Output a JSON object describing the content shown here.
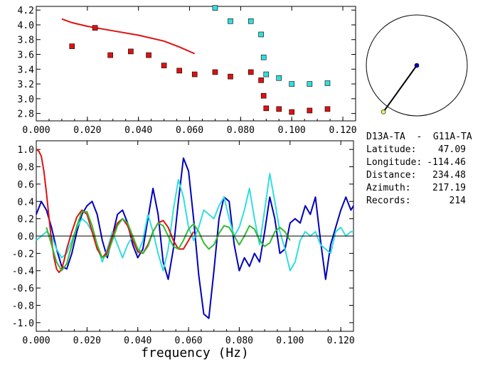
{
  "colors": {
    "red": "#dd1111",
    "cyan": "#33dddd",
    "blue": "#0000bb",
    "green": "#33bb33",
    "black": "#000000"
  },
  "info": {
    "station_pair": "D13A-TA  -  G11A-TA",
    "rows": [
      {
        "label": "Latitude:",
        "value": "47.09"
      },
      {
        "label": "Longitude:",
        "value": "-114.46"
      },
      {
        "label": "Distance:",
        "value": "234.48"
      },
      {
        "label": "Azimuth:",
        "value": "217.19"
      },
      {
        "label": "Records:",
        "value": "214"
      }
    ]
  },
  "chart_data": [
    {
      "type": "scatter",
      "xlim": [
        0.0,
        0.125
      ],
      "ylim": [
        2.7,
        4.25
      ],
      "x_ticks": [
        "0.000",
        "0.020",
        "0.040",
        "0.060",
        "0.080",
        "0.100",
        "0.120"
      ],
      "y_ticks": [
        "2.8",
        "3.0",
        "3.2",
        "3.4",
        "3.6",
        "3.8",
        "4.0",
        "4.2"
      ],
      "series": [
        {
          "color": "red",
          "style": "line",
          "x": [
            0.01,
            0.014,
            0.02,
            0.03,
            0.04,
            0.05,
            0.056,
            0.062
          ],
          "y": [
            4.08,
            4.03,
            3.98,
            3.92,
            3.86,
            3.78,
            3.7,
            3.61
          ]
        },
        {
          "color": "red",
          "style": "markers",
          "x": [
            0.014,
            0.023,
            0.029,
            0.037,
            0.044,
            0.05,
            0.056,
            0.062,
            0.07,
            0.076,
            0.084,
            0.088,
            0.089,
            0.09,
            0.095,
            0.1,
            0.107,
            0.114
          ],
          "y": [
            3.71,
            3.96,
            3.59,
            3.64,
            3.59,
            3.45,
            3.38,
            3.33,
            3.36,
            3.3,
            3.36,
            3.25,
            3.04,
            2.87,
            2.86,
            2.82,
            2.84,
            2.86
          ]
        },
        {
          "color": "cyan",
          "style": "markers",
          "x": [
            0.07,
            0.076,
            0.084,
            0.088,
            0.089,
            0.09,
            0.095,
            0.1,
            0.107,
            0.114
          ],
          "y": [
            4.23,
            4.05,
            4.05,
            3.87,
            3.56,
            3.33,
            3.28,
            3.2,
            3.2,
            3.21
          ]
        }
      ]
    },
    {
      "type": "line",
      "xlim": [
        0.0,
        0.125
      ],
      "ylim": [
        -1.1,
        1.1
      ],
      "x_ticks": [
        "0.000",
        "0.020",
        "0.040",
        "0.060",
        "0.080",
        "0.100",
        "0.120"
      ],
      "y_ticks": [
        "1.0",
        "0.8",
        "0.6",
        "0.4",
        "0.2",
        "0.0",
        "-0.2",
        "-0.4",
        "-0.6",
        "-0.8",
        "-1.0"
      ],
      "xlabel": "frequency (Hz)",
      "series": [
        {
          "color": "blue",
          "x": [
            0.0,
            0.002,
            0.004,
            0.006,
            0.008,
            0.01,
            0.012,
            0.014,
            0.016,
            0.018,
            0.02,
            0.022,
            0.024,
            0.026,
            0.028,
            0.03,
            0.032,
            0.034,
            0.036,
            0.038,
            0.04,
            0.042,
            0.044,
            0.046,
            0.048,
            0.05,
            0.052,
            0.054,
            0.056,
            0.058,
            0.06,
            0.062,
            0.064,
            0.066,
            0.068,
            0.07,
            0.072,
            0.074,
            0.076,
            0.078,
            0.08,
            0.082,
            0.084,
            0.086,
            0.088,
            0.09,
            0.092,
            0.094,
            0.096,
            0.098,
            0.1,
            0.102,
            0.104,
            0.106,
            0.108,
            0.11,
            0.112,
            0.114,
            0.116,
            0.118,
            0.12,
            0.122,
            0.124,
            0.125
          ],
          "y": [
            0.25,
            0.4,
            0.3,
            0.1,
            -0.15,
            -0.35,
            -0.38,
            -0.2,
            0.05,
            0.25,
            0.35,
            0.4,
            0.25,
            -0.05,
            -0.25,
            0.0,
            0.25,
            0.3,
            0.15,
            -0.1,
            -0.25,
            -0.15,
            0.2,
            0.55,
            0.25,
            -0.3,
            -0.5,
            -0.15,
            0.4,
            0.9,
            0.75,
            0.2,
            -0.45,
            -0.9,
            -0.95,
            -0.4,
            0.2,
            0.45,
            0.4,
            -0.1,
            -0.4,
            -0.25,
            -0.35,
            -0.2,
            -0.3,
            0.05,
            0.45,
            0.2,
            -0.2,
            -0.15,
            0.15,
            0.2,
            0.15,
            0.35,
            0.25,
            0.45,
            -0.05,
            -0.5,
            -0.1,
            0.1,
            0.3,
            0.45,
            0.3,
            0.35
          ]
        },
        {
          "color": "cyan",
          "x": [
            0.0,
            0.002,
            0.004,
            0.006,
            0.008,
            0.01,
            0.012,
            0.014,
            0.016,
            0.018,
            0.02,
            0.022,
            0.024,
            0.026,
            0.028,
            0.03,
            0.032,
            0.034,
            0.036,
            0.038,
            0.04,
            0.042,
            0.044,
            0.046,
            0.048,
            0.05,
            0.052,
            0.054,
            0.056,
            0.058,
            0.06,
            0.062,
            0.064,
            0.066,
            0.068,
            0.07,
            0.072,
            0.074,
            0.076,
            0.078,
            0.08,
            0.082,
            0.084,
            0.086,
            0.088,
            0.09,
            0.092,
            0.094,
            0.096,
            0.098,
            0.1,
            0.102,
            0.104,
            0.106,
            0.108,
            0.11,
            0.112,
            0.114,
            0.116,
            0.118,
            0.12,
            0.122,
            0.124,
            0.125
          ],
          "y": [
            -0.05,
            0.0,
            0.05,
            0.0,
            -0.15,
            -0.25,
            -0.2,
            -0.05,
            0.1,
            0.2,
            0.15,
            0.05,
            -0.1,
            -0.3,
            -0.15,
            0.05,
            -0.1,
            -0.25,
            -0.1,
            0.0,
            -0.2,
            -0.05,
            0.25,
            0.05,
            -0.2,
            -0.4,
            -0.15,
            0.3,
            0.65,
            0.45,
            0.1,
            -0.05,
            0.1,
            0.3,
            0.25,
            0.2,
            0.35,
            0.45,
            0.2,
            0.0,
            0.1,
            0.3,
            0.55,
            0.2,
            -0.1,
            0.3,
            0.72,
            0.4,
            0.05,
            -0.15,
            -0.4,
            -0.3,
            -0.05,
            0.05,
            0.0,
            0.05,
            -0.1,
            -0.15,
            -0.2,
            0.05,
            0.1,
            0.0,
            0.05,
            0.05
          ]
        },
        {
          "color": "red",
          "x": [
            0.0,
            0.001,
            0.002,
            0.003,
            0.004,
            0.005,
            0.006,
            0.007,
            0.008,
            0.009,
            0.01,
            0.011,
            0.012,
            0.014,
            0.016,
            0.018,
            0.02,
            0.022,
            0.024,
            0.026,
            0.028,
            0.03,
            0.032,
            0.034,
            0.036,
            0.038,
            0.04,
            0.042,
            0.044,
            0.046,
            0.048,
            0.05,
            0.052,
            0.054,
            0.056,
            0.058,
            0.06,
            0.062
          ],
          "y": [
            1.0,
            0.98,
            0.92,
            0.75,
            0.5,
            0.22,
            -0.05,
            -0.25,
            -0.38,
            -0.42,
            -0.38,
            -0.28,
            -0.15,
            0.05,
            0.22,
            0.3,
            0.25,
            0.05,
            -0.15,
            -0.25,
            -0.18,
            0.0,
            0.15,
            0.2,
            0.12,
            -0.05,
            -0.18,
            -0.2,
            -0.1,
            0.05,
            0.15,
            0.18,
            0.1,
            -0.05,
            -0.15,
            -0.15,
            -0.05,
            0.05
          ]
        },
        {
          "color": "green",
          "x": [
            0.004,
            0.006,
            0.008,
            0.01,
            0.012,
            0.014,
            0.016,
            0.018,
            0.02,
            0.022,
            0.024,
            0.026,
            0.028,
            0.03,
            0.032,
            0.034,
            0.036,
            0.038,
            0.04,
            0.042,
            0.044,
            0.046,
            0.048,
            0.05,
            0.052,
            0.054,
            0.056,
            0.058,
            0.06,
            0.062,
            0.064,
            0.066,
            0.068,
            0.07,
            0.072,
            0.074,
            0.076,
            0.078,
            0.08,
            0.082,
            0.084,
            0.086,
            0.088,
            0.09,
            0.092,
            0.094,
            0.096,
            0.098,
            0.1
          ],
          "y": [
            0.1,
            -0.1,
            -0.3,
            -0.4,
            -0.32,
            -0.1,
            0.12,
            0.28,
            0.28,
            0.12,
            -0.1,
            -0.25,
            -0.22,
            -0.05,
            0.12,
            0.2,
            0.15,
            0.0,
            -0.15,
            -0.2,
            -0.12,
            0.05,
            0.15,
            0.12,
            0.0,
            -0.12,
            -0.15,
            -0.05,
            0.08,
            0.14,
            0.05,
            -0.08,
            -0.15,
            -0.1,
            0.03,
            0.12,
            0.1,
            0.0,
            -0.1,
            0.0,
            0.12,
            0.08,
            -0.05,
            -0.12,
            -0.08,
            0.05,
            0.1,
            0.05,
            -0.05
          ]
        },
        {
          "color": "black",
          "x": [
            0.0,
            0.125
          ],
          "y": [
            0.0,
            0.0
          ]
        }
      ]
    }
  ],
  "map": {
    "circle_center": [
      0.0,
      0.0
    ],
    "blue_point": [
      0.0,
      0.0
    ],
    "yellow_point": [
      -0.66,
      -0.92
    ]
  }
}
